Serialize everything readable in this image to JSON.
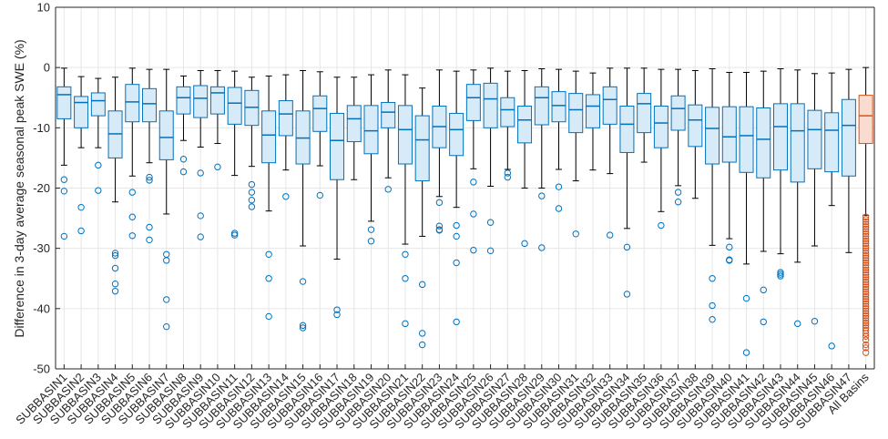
{
  "chart_data": {
    "type": "box",
    "ylabel": "Difference in 3-day average seasonal peak SWE (%)",
    "ylim": [
      -50,
      10
    ],
    "yticks": [
      10,
      0,
      -10,
      -20,
      -30,
      -40,
      -50
    ],
    "grid": true,
    "colors": {
      "basin": "#0072BD",
      "basin_fill": "#D6EAF8",
      "all": "#D95319",
      "all_fill": "#F9DCCF",
      "grid": "#E6E6E6",
      "axis": "#262626",
      "whisker": "#000000"
    },
    "categories": [
      "SUBBASIN1",
      "SUBBASIN2",
      "SUBBASIN3",
      "SUBBASIN4",
      "SUBBASIN5",
      "SUBBASIN6",
      "SUBBASIN7",
      "SUBBASIN8",
      "SUBBASIN9",
      "SUBBASIN10",
      "SUBBASIN11",
      "SUBBASIN12",
      "SUBBASIN13",
      "SUBBASIN14",
      "SUBBASIN15",
      "SUBBASIN16",
      "SUBBASIN17",
      "SUBBASIN18",
      "SUBBASIN19",
      "SUBBASIN20",
      "SUBBASIN21",
      "SUBBASIN22",
      "SUBBASIN23",
      "SUBBASIN24",
      "SUBBASIN25",
      "SUBBASIN26",
      "SUBBASIN27",
      "SUBBASIN28",
      "SUBBASIN29",
      "SUBBASIN30",
      "SUBBASIN31",
      "SUBBASIN32",
      "SUBBASIN33",
      "SUBBASIN34",
      "SUBBASIN35",
      "SUBBASIN36",
      "SUBBASIN37",
      "SUBBASIN38",
      "SUBBASIN39",
      "SUBBASIN40",
      "SUBBASIN41",
      "SUBBASIN42",
      "SUBBASIN43",
      "SUBBASIN44",
      "SUBBASIN45",
      "SUBBASIN46",
      "SUBBASIN47",
      "All Basins"
    ],
    "boxes": [
      {
        "wl": -16.2,
        "q1": -8.5,
        "med": -4.5,
        "q3": -3.2,
        "wh": -0.1,
        "out": [
          -18.6,
          -20.5,
          -28.0
        ]
      },
      {
        "wl": -13.3,
        "q1": -10.0,
        "med": -5.8,
        "q3": -4.8,
        "wh": -1.5,
        "out": [
          -23.2,
          -27.1
        ]
      },
      {
        "wl": -13.3,
        "q1": -8.0,
        "med": -5.5,
        "q3": -4.2,
        "wh": -1.8,
        "out": [
          -16.2,
          -20.4
        ]
      },
      {
        "wl": -22.3,
        "q1": -15.0,
        "med": -11.0,
        "q3": -7.2,
        "wh": -1.6,
        "out": [
          -30.8,
          -31.2,
          -33.3,
          -35.9,
          -37.1
        ]
      },
      {
        "wl": -18.0,
        "q1": -9.0,
        "med": -5.7,
        "q3": -2.8,
        "wh": -0.1,
        "out": [
          -20.7,
          -24.8,
          -27.9
        ]
      },
      {
        "wl": -15.8,
        "q1": -9.0,
        "med": -6.0,
        "q3": -3.5,
        "wh": -0.3,
        "out": [
          -18.2,
          -18.7,
          -26.5,
          -28.6
        ]
      },
      {
        "wl": -24.3,
        "q1": -15.3,
        "med": -11.6,
        "q3": -7.2,
        "wh": -0.3,
        "out": [
          -31.0,
          -32.0,
          -38.5,
          -43.0
        ]
      },
      {
        "wl": -12.1,
        "q1": -7.7,
        "med": -5.0,
        "q3": -3.2,
        "wh": -1.4,
        "out": [
          -15.2,
          -17.3
        ]
      },
      {
        "wl": -13.2,
        "q1": -8.3,
        "med": -5.1,
        "q3": -3.0,
        "wh": -0.5,
        "out": [
          -17.5,
          -24.6,
          -28.1
        ]
      },
      {
        "wl": -12.6,
        "q1": -7.7,
        "med": -4.2,
        "q3": -3.2,
        "wh": -0.5,
        "out": [
          -16.5
        ]
      },
      {
        "wl": -17.9,
        "q1": -9.4,
        "med": -5.9,
        "q3": -3.3,
        "wh": -0.6,
        "out": [
          -27.5,
          -27.8
        ]
      },
      {
        "wl": -16.4,
        "q1": -9.6,
        "med": -6.6,
        "q3": -3.8,
        "wh": -1.6,
        "out": [
          -19.4,
          -20.7,
          -22.0,
          -23.1
        ]
      },
      {
        "wl": -23.8,
        "q1": -15.8,
        "med": -11.2,
        "q3": -7.2,
        "wh": -1.4,
        "out": [
          -31.0,
          -35.0,
          -41.3
        ]
      },
      {
        "wl": -17.0,
        "q1": -11.3,
        "med": -7.7,
        "q3": -5.5,
        "wh": -1.2,
        "out": [
          -21.4
        ]
      },
      {
        "wl": -29.6,
        "q1": -16.0,
        "med": -11.7,
        "q3": -7.2,
        "wh": -0.5,
        "out": [
          -35.5,
          -42.8,
          -43.2
        ]
      },
      {
        "wl": -16.3,
        "q1": -10.6,
        "med": -6.8,
        "q3": -4.7,
        "wh": -0.7,
        "out": [
          -21.2
        ]
      },
      {
        "wl": -31.8,
        "q1": -18.6,
        "med": -12.1,
        "q3": -7.6,
        "wh": -1.6,
        "out": [
          -40.2,
          -41.0
        ]
      },
      {
        "wl": -18.6,
        "q1": -12.3,
        "med": -8.5,
        "q3": -6.3,
        "wh": -1.6,
        "out": []
      },
      {
        "wl": -25.5,
        "q1": -14.3,
        "med": -10.5,
        "q3": -6.3,
        "wh": -1.2,
        "out": [
          -26.9,
          -28.8
        ]
      },
      {
        "wl": -18.3,
        "q1": -10.0,
        "med": -7.4,
        "q3": -5.8,
        "wh": -0.4,
        "out": [
          -20.2
        ]
      },
      {
        "wl": -29.3,
        "q1": -16.0,
        "med": -10.3,
        "q3": -6.3,
        "wh": -1.2,
        "out": [
          -31.0,
          -35.0,
          -42.5
        ]
      },
      {
        "wl": -28.0,
        "q1": -18.8,
        "med": -12.0,
        "q3": -8.0,
        "wh": -3.4,
        "out": [
          -36.0,
          -44.1,
          -46.0
        ]
      },
      {
        "wl": -21.4,
        "q1": -13.3,
        "med": -9.8,
        "q3": -6.4,
        "wh": -0.4,
        "out": [
          -22.4,
          -26.3,
          -26.9,
          -27.0
        ]
      },
      {
        "wl": -23.2,
        "q1": -14.6,
        "med": -10.3,
        "q3": -7.6,
        "wh": -0.6,
        "out": [
          -26.2,
          -28.0,
          -32.4,
          -42.2
        ]
      },
      {
        "wl": -16.8,
        "q1": -8.8,
        "med": -5.0,
        "q3": -2.8,
        "wh": -0.4,
        "out": [
          -19.0,
          -24.3,
          -30.3
        ]
      },
      {
        "wl": -19.7,
        "q1": -10.0,
        "med": -5.2,
        "q3": -2.6,
        "wh": -0.1,
        "out": [
          -25.7,
          -30.4
        ]
      },
      {
        "wl": -16.9,
        "q1": -9.8,
        "med": -7.0,
        "q3": -5.0,
        "wh": -0.6,
        "out": [
          -17.5,
          -18.2
        ]
      },
      {
        "wl": -20.0,
        "q1": -12.5,
        "med": -8.7,
        "q3": -6.4,
        "wh": -0.5,
        "out": [
          -29.2
        ]
      },
      {
        "wl": -20.0,
        "q1": -9.5,
        "med": -5.0,
        "q3": -3.2,
        "wh": -0.2,
        "out": [
          -21.3,
          -29.9
        ]
      },
      {
        "wl": -16.9,
        "q1": -9.0,
        "med": -6.3,
        "q3": -4.0,
        "wh": -0.3,
        "out": [
          -19.8,
          -23.4
        ]
      },
      {
        "wl": -18.8,
        "q1": -10.8,
        "med": -7.0,
        "q3": -4.3,
        "wh": -0.6,
        "out": [
          -27.6
        ]
      },
      {
        "wl": -17.0,
        "q1": -10.0,
        "med": -6.4,
        "q3": -4.5,
        "wh": -0.9,
        "out": []
      },
      {
        "wl": -17.6,
        "q1": -9.4,
        "med": -5.3,
        "q3": -3.2,
        "wh": -0.1,
        "out": [
          -27.8
        ]
      },
      {
        "wl": -26.7,
        "q1": -14.1,
        "med": -9.4,
        "q3": -6.4,
        "wh": -0.1,
        "out": [
          -29.8,
          -37.6
        ]
      },
      {
        "wl": -15.7,
        "q1": -10.8,
        "med": -6.0,
        "q3": -4.3,
        "wh": -0.1,
        "out": []
      },
      {
        "wl": -23.9,
        "q1": -13.3,
        "med": -9.2,
        "q3": -6.4,
        "wh": -0.3,
        "out": [
          -26.2
        ]
      },
      {
        "wl": -19.6,
        "q1": -10.4,
        "med": -6.8,
        "q3": -4.7,
        "wh": -0.3,
        "out": [
          -20.7,
          -22.3
        ]
      },
      {
        "wl": -21.7,
        "q1": -13.1,
        "med": -8.7,
        "q3": -6.2,
        "wh": -0.5,
        "out": []
      },
      {
        "wl": -29.5,
        "q1": -16.0,
        "med": -10.1,
        "q3": -6.6,
        "wh": -0.2,
        "out": [
          -35.0,
          -39.5,
          -41.8
        ]
      },
      {
        "wl": -28.4,
        "q1": -15.7,
        "med": -11.5,
        "q3": -6.5,
        "wh": -0.8,
        "out": [
          -29.8,
          -31.9,
          -32.0
        ]
      },
      {
        "wl": -32.6,
        "q1": -17.4,
        "med": -11.3,
        "q3": -6.5,
        "wh": -0.8,
        "out": [
          -38.3,
          -47.3
        ]
      },
      {
        "wl": -30.5,
        "q1": -18.3,
        "med": -11.9,
        "q3": -6.7,
        "wh": -0.6,
        "out": [
          -36.9,
          -42.2
        ]
      },
      {
        "wl": -30.9,
        "q1": -17.0,
        "med": -9.8,
        "q3": -6.0,
        "wh": -0.2,
        "out": [
          -34.0,
          -34.3,
          -34.6
        ]
      },
      {
        "wl": -32.3,
        "q1": -19.0,
        "med": -10.5,
        "q3": -6.0,
        "wh": -0.4,
        "out": [
          -42.5
        ]
      },
      {
        "wl": -29.6,
        "q1": -16.8,
        "med": -10.3,
        "q3": -7.1,
        "wh": -1.0,
        "out": [
          -42.1
        ]
      },
      {
        "wl": -22.9,
        "q1": -17.3,
        "med": -10.4,
        "q3": -7.5,
        "wh": -0.9,
        "out": [
          -46.2
        ]
      },
      {
        "wl": -30.7,
        "q1": -18.0,
        "med": -9.6,
        "q3": -5.3,
        "wh": -0.3,
        "out": []
      },
      {
        "wl": -24.5,
        "q1": -12.6,
        "med": -8.0,
        "q3": -4.6,
        "wh": 0.0,
        "out": [
          -24.8,
          -25.2,
          -25.6,
          -26.0,
          -26.4,
          -26.8,
          -27.2,
          -27.6,
          -28.0,
          -28.4,
          -28.8,
          -29.2,
          -29.6,
          -30.0,
          -30.4,
          -30.8,
          -31.2,
          -31.6,
          -32.0,
          -32.4,
          -32.8,
          -33.2,
          -33.6,
          -34.0,
          -34.4,
          -34.8,
          -35.2,
          -35.6,
          -36.0,
          -36.4,
          -36.8,
          -37.2,
          -37.6,
          -38.0,
          -38.4,
          -38.8,
          -39.2,
          -39.6,
          -40.0,
          -40.4,
          -40.8,
          -41.2,
          -41.6,
          -42.0,
          -42.4,
          -42.8,
          -43.2,
          -43.6,
          -44.1,
          -44.6,
          -45.2,
          -46.0,
          -46.5,
          -47.3
        ]
      }
    ]
  }
}
